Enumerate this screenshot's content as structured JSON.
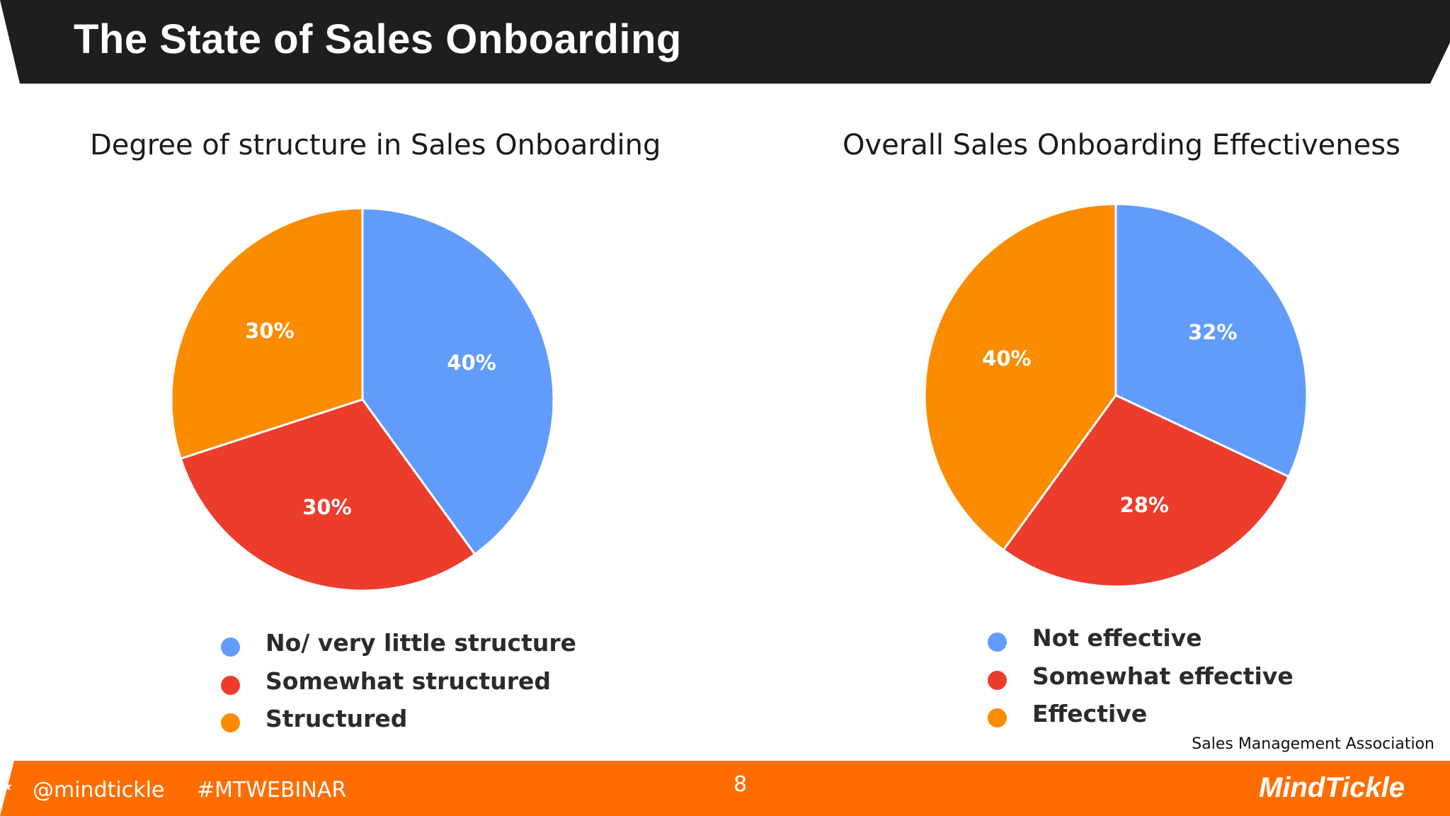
{
  "slide": {
    "title": "The State of Sales Onboarding",
    "source": "Sales Management Association"
  },
  "footer": {
    "handle": "@mindtickle",
    "hashtag": "#MTWEBINAR",
    "page_number": "8",
    "brand": "MindTickle"
  },
  "colors": {
    "header_bg": "#1e1e1e",
    "footer_bg": "#ff6d00",
    "blue": "#619cfc",
    "red": "#ec3c2c",
    "orange": "#fb8c00"
  },
  "chart_data": [
    {
      "type": "pie",
      "title": "Degree of structure in Sales Onboarding",
      "categories": [
        "No/ very little structure",
        "Somewhat structured",
        "Structured"
      ],
      "values": [
        40,
        30,
        30
      ],
      "labels": [
        "40%",
        "30%",
        "30%"
      ],
      "colors": [
        "#619cfc",
        "#ec3c2c",
        "#fb8c00"
      ],
      "legend_position": "bottom"
    },
    {
      "type": "pie",
      "title": "Overall Sales Onboarding Effectiveness",
      "categories": [
        "Not effective",
        "Somewhat effective",
        "Effective"
      ],
      "values": [
        32,
        28,
        40
      ],
      "labels": [
        "32%",
        "28%",
        "40%"
      ],
      "colors": [
        "#619cfc",
        "#ec3c2c",
        "#fb8c00"
      ],
      "legend_position": "bottom"
    }
  ]
}
